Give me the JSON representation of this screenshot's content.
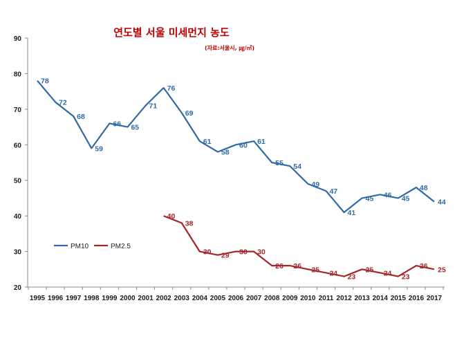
{
  "chart_data": {
    "type": "line",
    "title": "연도별 서울 미세먼지 농도",
    "source_note": "(자료:서울시, ㎍/㎥)",
    "xlabel": "",
    "ylabel": "",
    "ylim": [
      20,
      90
    ],
    "yticks": [
      20,
      30,
      40,
      50,
      60,
      70,
      80,
      90
    ],
    "categories": [
      "1995",
      "1996",
      "1997",
      "1998",
      "1999",
      "2000",
      "2001",
      "2002",
      "2003",
      "2004",
      "2005",
      "2006",
      "2007",
      "2008",
      "2009",
      "2010",
      "2011",
      "2012",
      "2013",
      "2014",
      "2015",
      "2016",
      "2017"
    ],
    "series": [
      {
        "name": "PM10",
        "color": "#2e6aa6",
        "labelColor": "#2e6aa6",
        "values": [
          78,
          72,
          68,
          59,
          66,
          65,
          71,
          76,
          69,
          61,
          58,
          60,
          61,
          55,
          54,
          49,
          47,
          41,
          45,
          46,
          45,
          48,
          44
        ]
      },
      {
        "name": "PM2.5",
        "color": "#a3262a",
        "labelColor": "#a3262a",
        "values": [
          null,
          null,
          null,
          null,
          null,
          null,
          null,
          40,
          38,
          30,
          29,
          30,
          30,
          26,
          26,
          25,
          24,
          23,
          25,
          24,
          23,
          26,
          25
        ]
      }
    ],
    "legend_position": "left",
    "grid": false
  }
}
